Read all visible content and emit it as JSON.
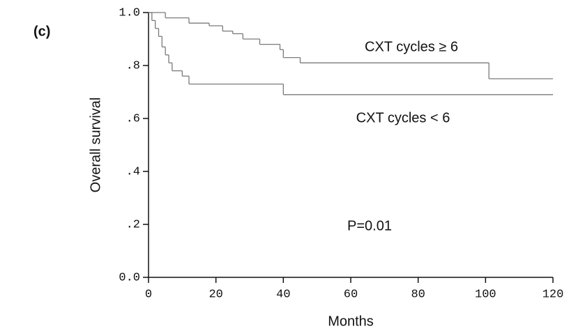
{
  "chart_data": {
    "type": "step",
    "panel_label": "(c)",
    "xlabel": "Months",
    "ylabel": "Overall survival",
    "annotation": "P=0.01",
    "xlim": [
      0,
      120
    ],
    "xticks": [
      0,
      20,
      40,
      60,
      80,
      100,
      120
    ],
    "ylim": [
      0,
      1
    ],
    "yticks": [
      {
        "value": 0,
        "label": "0.0"
      },
      {
        "value": 0.2,
        "label": ".2"
      },
      {
        "value": 0.4,
        "label": ".4"
      },
      {
        "value": 0.6,
        "label": ".6"
      },
      {
        "value": 0.8,
        "label": ".8"
      },
      {
        "value": 1,
        "label": "1.0"
      }
    ],
    "series": [
      {
        "name": "CXT cycles ≥ 6",
        "color": "#7a7a7a",
        "x": [
          0,
          5,
          12,
          18,
          22,
          25,
          28,
          33,
          39,
          40,
          45,
          101,
          120
        ],
        "values": [
          1.0,
          0.98,
          0.96,
          0.95,
          0.93,
          0.92,
          0.9,
          0.88,
          0.86,
          0.83,
          0.81,
          0.75,
          0.75
        ]
      },
      {
        "name": "CXT cycles < 6",
        "color": "#7a7a7a",
        "x": [
          0,
          1,
          2,
          3,
          4,
          5,
          6,
          7,
          10,
          12,
          40,
          120
        ],
        "values": [
          1.0,
          0.97,
          0.94,
          0.91,
          0.87,
          0.84,
          0.81,
          0.78,
          0.76,
          0.73,
          0.69,
          0.69
        ]
      }
    ]
  }
}
